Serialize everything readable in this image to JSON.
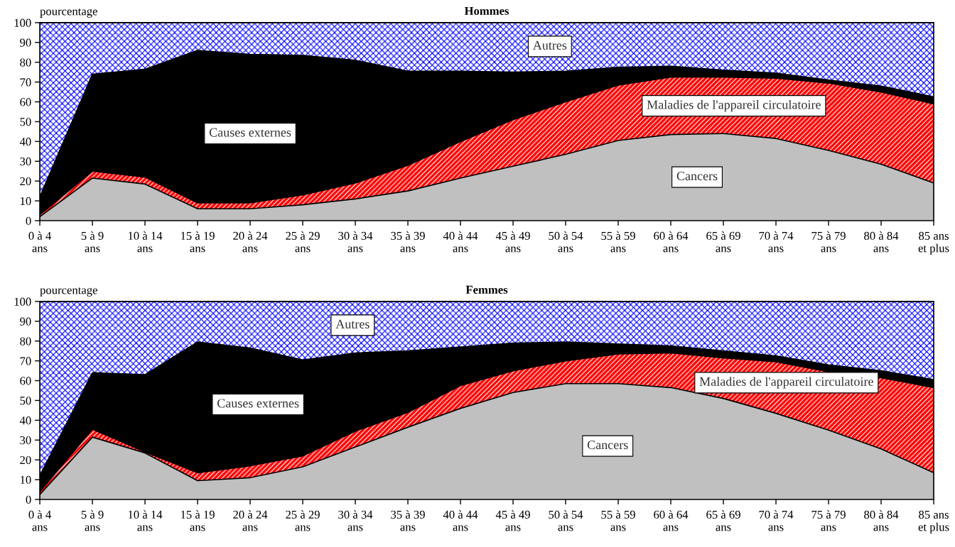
{
  "chart_data": [
    {
      "type": "area",
      "stacked": true,
      "title": "Hommes",
      "ylabel": "pourcentage",
      "categories": [
        "0 à 4\nans",
        "5 à 9\nans",
        "10 à 14\nans",
        "15 à 19\nans",
        "20 à 24\nans",
        "25 à 29\nans",
        "30 à 34\nans",
        "35 à 39\nans",
        "40 à 44\nans",
        "45 à 49\nans",
        "50 à 54\nans",
        "55 à 59\nans",
        "60 à 64\nans",
        "65 à 69\nans",
        "70 à 74\nans",
        "75 à 79\nans",
        "80 à 84\nans",
        "85 ans\net plus"
      ],
      "ylim": [
        0,
        100
      ],
      "yticks": [
        0,
        10,
        20,
        30,
        40,
        50,
        60,
        70,
        80,
        90,
        100
      ],
      "series": [
        {
          "name": "Cancers",
          "color": "#c0c0c0",
          "values": [
            2,
            21.5,
            18.5,
            6,
            6,
            8,
            11,
            15,
            21.5,
            27.5,
            33.5,
            40.5,
            43.5,
            44,
            41.5,
            35.5,
            28.5,
            19
          ]
        },
        {
          "name": "Maladies de l'appareil circulatoire",
          "color": "#ff0000",
          "values": [
            1,
            3.5,
            3.5,
            3,
            3,
            5,
            8,
            13,
            18.5,
            23.5,
            26.5,
            28,
            29,
            28.5,
            30.5,
            34,
            36.5,
            40
          ]
        },
        {
          "name": "Causes externes",
          "color": "#000000",
          "values": [
            9,
            49,
            54.5,
            77,
            75,
            70.5,
            62,
            47.5,
            35.5,
            24,
            15.5,
            9,
            5.5,
            3.5,
            2.5,
            1.5,
            3,
            3.5
          ]
        },
        {
          "name": "Autres",
          "color": "#0000ff",
          "values": [
            88,
            26,
            23.5,
            14,
            16,
            16.5,
            19,
            24.5,
            24.5,
            25,
            24.5,
            22.5,
            22,
            24,
            25.5,
            29,
            32,
            37.5
          ]
        }
      ]
    },
    {
      "type": "area",
      "stacked": true,
      "title": "Femmes",
      "ylabel": "pourcentage",
      "categories": [
        "0 à 4\nans",
        "5 à 9\nans",
        "10 à 14\nans",
        "15 à 19\nans",
        "20 à 24\nans",
        "25 à 29\nans",
        "30 à 34\nans",
        "35 à 39\nans",
        "40 à 44\nans",
        "45 à 49\nans",
        "50 à 54\nans",
        "55 à 59\nans",
        "60 à 64\nans",
        "65 à 69\nans",
        "70 à 74\nans",
        "75 à 79\nans",
        "80 à 84\nans",
        "85 ans\net plus"
      ],
      "ylim": [
        0,
        100
      ],
      "yticks": [
        0,
        10,
        20,
        30,
        40,
        50,
        60,
        70,
        80,
        90,
        100
      ],
      "series": [
        {
          "name": "Cancers",
          "color": "#c0c0c0",
          "values": [
            2.5,
            31.5,
            23.5,
            9.5,
            11,
            16.5,
            26.5,
            36.5,
            46,
            54,
            58.5,
            58.5,
            56.5,
            51,
            43.5,
            35,
            25.5,
            13.5
          ]
        },
        {
          "name": "Maladies de l'appareil circulatoire",
          "color": "#ff0000",
          "values": [
            1.5,
            4,
            0.5,
            4,
            6,
            5.5,
            8,
            7.5,
            11.5,
            11,
            11.5,
            15,
            17.5,
            20.5,
            26,
            29.5,
            36,
            43
          ]
        },
        {
          "name": "Causes externes",
          "color": "#000000",
          "values": [
            8,
            28.5,
            39,
            66,
            59.5,
            48.5,
            39.5,
            31,
            19.5,
            14,
            9.5,
            5,
            3.5,
            3.5,
            3,
            3.5,
            3.5,
            4
          ]
        },
        {
          "name": "Autres",
          "color": "#0000ff",
          "values": [
            88,
            36,
            37,
            20.5,
            23.5,
            29.5,
            26,
            25,
            23,
            21,
            20.5,
            21.5,
            22.5,
            25,
            27.5,
            32,
            35,
            39.5
          ]
        }
      ]
    }
  ]
}
